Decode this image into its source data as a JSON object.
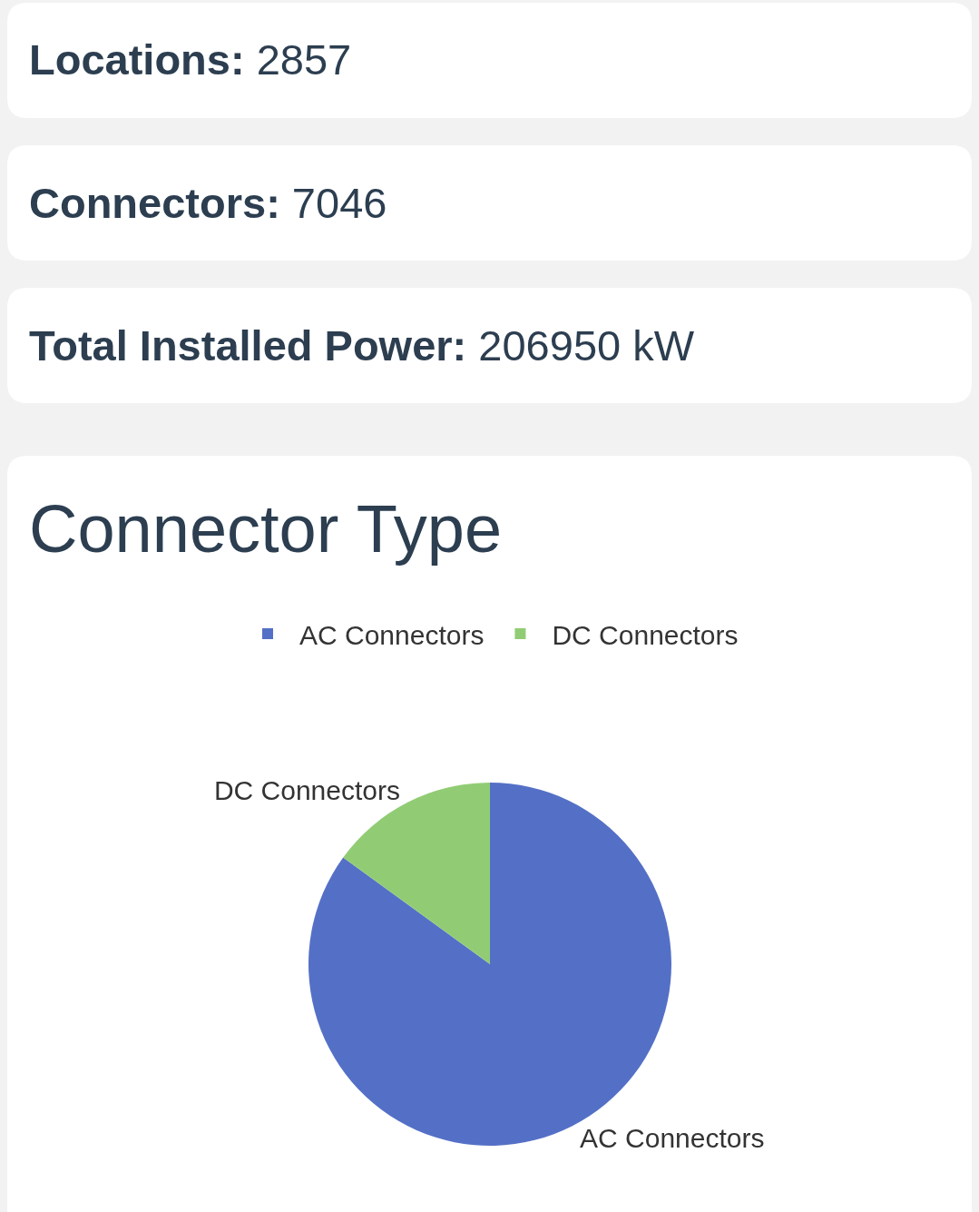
{
  "chart_data": [
    {
      "type": "other",
      "title": "Locations:",
      "annotations": [
        "2857"
      ]
    },
    {
      "type": "other",
      "title": "Connectors:",
      "annotations": [
        "7046"
      ]
    },
    {
      "type": "other",
      "title": "Total Installed Power:",
      "annotations": [
        "206950 kW"
      ]
    },
    {
      "type": "pie",
      "title": "Connector Type",
      "categories": [
        "AC Connectors",
        "DC Connectors"
      ],
      "values": [
        85,
        15
      ],
      "colors": [
        "#5470c6",
        "#91cc75"
      ],
      "legend": "top"
    }
  ]
}
